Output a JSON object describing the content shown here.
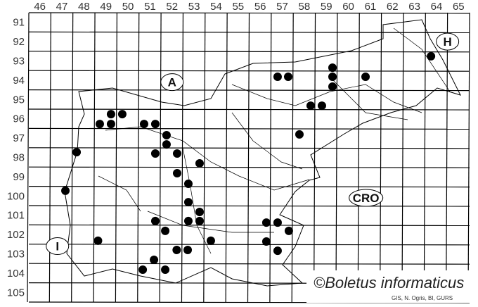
{
  "map": {
    "columns": [
      "46",
      "47",
      "48",
      "49",
      "50",
      "51",
      "52",
      "53",
      "54",
      "55",
      "56",
      "57",
      "58",
      "59",
      "60",
      "61",
      "62",
      "63",
      "64",
      "65"
    ],
    "rows": [
      "91",
      "92",
      "93",
      "94",
      "95",
      "96",
      "97",
      "98",
      "99",
      "100",
      "101",
      "102",
      "103",
      "104",
      "105"
    ],
    "regions": [
      {
        "label": "A",
        "col": 52.5,
        "row": 94.6
      },
      {
        "label": "H",
        "col": 65.0,
        "row": 92.5
      },
      {
        "label": "I",
        "col": 47.3,
        "row": 103.1
      },
      {
        "label": "CRO",
        "col": 61.3,
        "row": 100.6
      }
    ],
    "copyright": "©Boletus informaticus",
    "credit": "GIS, N. Ogris, BI, GURS",
    "dot_color": "#000000",
    "records": [
      [
        49.22,
        96.77
      ],
      [
        49.73,
        96.26
      ],
      [
        49.73,
        96.77
      ],
      [
        50.24,
        96.26
      ],
      [
        51.23,
        96.77
      ],
      [
        51.74,
        96.77
      ],
      [
        52.25,
        97.35
      ],
      [
        52.25,
        97.83
      ],
      [
        51.74,
        98.3
      ],
      [
        52.73,
        98.3
      ],
      [
        48.17,
        98.23
      ],
      [
        52.73,
        99.32
      ],
      [
        53.75,
        98.81
      ],
      [
        53.24,
        99.87
      ],
      [
        47.66,
        100.23
      ],
      [
        53.24,
        100.82
      ],
      [
        53.75,
        101.33
      ],
      [
        53.24,
        101.8
      ],
      [
        53.75,
        101.8
      ],
      [
        51.74,
        101.8
      ],
      [
        52.19,
        102.31
      ],
      [
        54.26,
        102.82
      ],
      [
        49.14,
        102.82
      ],
      [
        52.71,
        103.3
      ],
      [
        53.21,
        103.3
      ],
      [
        51.68,
        103.81
      ],
      [
        51.17,
        104.32
      ],
      [
        52.19,
        104.32
      ],
      [
        57.29,
        94.32
      ],
      [
        57.77,
        94.32
      ],
      [
        59.78,
        93.85
      ],
      [
        59.78,
        94.32
      ],
      [
        59.78,
        94.83
      ],
      [
        61.28,
        94.32
      ],
      [
        64.25,
        93.26
      ],
      [
        58.79,
        95.82
      ],
      [
        59.3,
        95.82
      ],
      [
        58.28,
        97.31
      ],
      [
        56.78,
        101.88
      ],
      [
        57.29,
        101.88
      ],
      [
        57.8,
        102.31
      ],
      [
        56.78,
        102.86
      ],
      [
        57.29,
        103.34
      ]
    ]
  }
}
